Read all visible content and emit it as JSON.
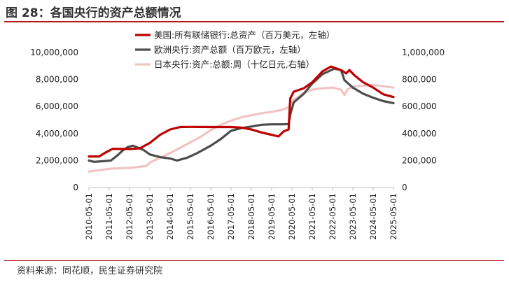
{
  "header": {
    "title": "图 28：各国央行的资产总额情况"
  },
  "footer": {
    "source": "资料来源：同花顺，民生证券研究院"
  },
  "chart_data": {
    "type": "line",
    "title": "",
    "xlabel": "",
    "ylabel": "",
    "x_ticks": [
      "2010-05-01",
      "2011-05-01",
      "2012-05-01",
      "2013-05-01",
      "2014-05-01",
      "2015-05-01",
      "2016-05-01",
      "2017-05-01",
      "2018-05-01",
      "2019-05-01",
      "2020-05-01",
      "2021-05-01",
      "2022-05-01",
      "2023-05-01",
      "2024-05-01",
      "2025-05-01"
    ],
    "x_range": [
      "2010-05-01",
      "2025-05-01"
    ],
    "y_left": {
      "ylim": [
        0,
        10000000
      ],
      "ticks": [
        "0",
        "2,000,000",
        "4,000,000",
        "6,000,000",
        "8,000,000",
        "10,000,000"
      ]
    },
    "y_right": {
      "ylim": [
        0,
        1000000
      ],
      "ticks": [
        "0",
        "200,000",
        "400,000",
        "600,000",
        "800,000",
        "1,000,000"
      ]
    },
    "legend_position": "top-center",
    "series": [
      {
        "name": "美国:所有联储银行:总资产（百万美元，左轴）",
        "axis": "left",
        "color": "#c00000",
        "points": [
          [
            "2010-05-01",
            2300000
          ],
          [
            "2010-11-01",
            2300000
          ],
          [
            "2011-03-01",
            2600000
          ],
          [
            "2011-07-01",
            2870000
          ],
          [
            "2012-05-01",
            2850000
          ],
          [
            "2012-11-01",
            2900000
          ],
          [
            "2013-05-01",
            3300000
          ],
          [
            "2013-11-01",
            3900000
          ],
          [
            "2014-05-01",
            4300000
          ],
          [
            "2014-11-01",
            4480000
          ],
          [
            "2015-05-01",
            4490000
          ],
          [
            "2016-05-01",
            4480000
          ],
          [
            "2017-05-01",
            4480000
          ],
          [
            "2017-11-01",
            4440000
          ],
          [
            "2018-05-01",
            4300000
          ],
          [
            "2018-11-01",
            4080000
          ],
          [
            "2019-05-01",
            3900000
          ],
          [
            "2019-09-01",
            3780000
          ],
          [
            "2019-12-01",
            4150000
          ],
          [
            "2020-03-01",
            4300000
          ],
          [
            "2020-04-01",
            6600000
          ],
          [
            "2020-06-01",
            7100000
          ],
          [
            "2020-12-01",
            7350000
          ],
          [
            "2021-05-01",
            7800000
          ],
          [
            "2021-11-01",
            8600000
          ],
          [
            "2022-04-01",
            8960000
          ],
          [
            "2022-10-01",
            8700000
          ],
          [
            "2023-01-01",
            8450000
          ],
          [
            "2023-03-01",
            8700000
          ],
          [
            "2023-06-01",
            8300000
          ],
          [
            "2023-11-01",
            7800000
          ],
          [
            "2024-05-01",
            7400000
          ],
          [
            "2024-11-01",
            6900000
          ],
          [
            "2025-05-01",
            6700000
          ]
        ]
      },
      {
        "name": "欧洲央行:资产总额（百万欧元，左轴）",
        "axis": "left",
        "color": "#4d4d4d",
        "points": [
          [
            "2010-05-01",
            2000000
          ],
          [
            "2010-08-01",
            1900000
          ],
          [
            "2011-01-01",
            1950000
          ],
          [
            "2011-06-01",
            2000000
          ],
          [
            "2011-10-01",
            2400000
          ],
          [
            "2012-01-01",
            2750000
          ],
          [
            "2012-04-01",
            3000000
          ],
          [
            "2012-07-01",
            3100000
          ],
          [
            "2013-01-01",
            2800000
          ],
          [
            "2013-05-01",
            2450000
          ],
          [
            "2013-11-01",
            2250000
          ],
          [
            "2014-05-01",
            2150000
          ],
          [
            "2014-09-01",
            2000000
          ],
          [
            "2015-03-01",
            2200000
          ],
          [
            "2015-09-01",
            2550000
          ],
          [
            "2016-05-01",
            3100000
          ],
          [
            "2016-11-01",
            3600000
          ],
          [
            "2017-05-01",
            4200000
          ],
          [
            "2017-11-01",
            4400000
          ],
          [
            "2018-05-01",
            4520000
          ],
          [
            "2018-11-01",
            4650000
          ],
          [
            "2019-05-01",
            4680000
          ],
          [
            "2019-11-01",
            4680000
          ],
          [
            "2020-03-01",
            4700000
          ],
          [
            "2020-04-01",
            5400000
          ],
          [
            "2020-06-01",
            6300000
          ],
          [
            "2020-12-01",
            6950000
          ],
          [
            "2021-05-01",
            7700000
          ],
          [
            "2021-11-01",
            8400000
          ],
          [
            "2022-06-01",
            8800000
          ],
          [
            "2022-10-01",
            8700000
          ],
          [
            "2022-12-01",
            7950000
          ],
          [
            "2023-05-01",
            7400000
          ],
          [
            "2023-11-01",
            6950000
          ],
          [
            "2024-05-01",
            6650000
          ],
          [
            "2024-11-01",
            6400000
          ],
          [
            "2025-05-01",
            6250000
          ]
        ]
      },
      {
        "name": "日本央行:资产:总额:周（十亿日元,右轴）",
        "axis": "right",
        "color": "#f0c4c4",
        "points": [
          [
            "2010-05-01",
            118000
          ],
          [
            "2011-03-01",
            135000
          ],
          [
            "2011-06-01",
            140000
          ],
          [
            "2012-05-01",
            145000
          ],
          [
            "2013-03-01",
            160000
          ],
          [
            "2013-05-01",
            185000
          ],
          [
            "2013-11-01",
            220000
          ],
          [
            "2014-05-01",
            255000
          ],
          [
            "2014-11-01",
            295000
          ],
          [
            "2015-05-01",
            335000
          ],
          [
            "2015-11-01",
            375000
          ],
          [
            "2016-05-01",
            425000
          ],
          [
            "2016-11-01",
            465000
          ],
          [
            "2017-05-01",
            495000
          ],
          [
            "2017-11-01",
            520000
          ],
          [
            "2018-05-01",
            535000
          ],
          [
            "2018-11-01",
            550000
          ],
          [
            "2019-05-01",
            560000
          ],
          [
            "2019-11-01",
            575000
          ],
          [
            "2020-03-01",
            595000
          ],
          [
            "2020-06-01",
            650000
          ],
          [
            "2020-12-01",
            700000
          ],
          [
            "2021-05-01",
            725000
          ],
          [
            "2021-11-01",
            735000
          ],
          [
            "2022-05-01",
            740000
          ],
          [
            "2022-10-01",
            725000
          ],
          [
            "2022-12-01",
            685000
          ],
          [
            "2023-02-01",
            730000
          ],
          [
            "2023-06-01",
            750000
          ],
          [
            "2023-12-01",
            755000
          ],
          [
            "2024-05-01",
            760000
          ],
          [
            "2024-11-01",
            750000
          ],
          [
            "2025-05-01",
            740000
          ]
        ]
      }
    ]
  }
}
